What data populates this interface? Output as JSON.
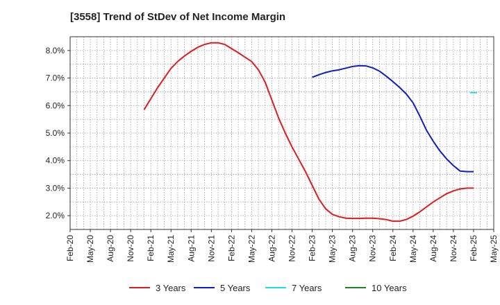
{
  "chart_data": {
    "type": "line",
    "title": "[3558]  Trend of StDev of Net Income Margin",
    "xlabel": "",
    "ylabel": "",
    "x_ticks": [
      "Feb-20",
      "May-20",
      "Aug-20",
      "Nov-20",
      "Feb-21",
      "May-21",
      "Aug-21",
      "Nov-21",
      "Feb-22",
      "May-22",
      "Aug-22",
      "Nov-22",
      "Feb-23",
      "May-23",
      "Aug-23",
      "Nov-23",
      "Feb-24",
      "May-24",
      "Aug-24",
      "Nov-24",
      "Feb-25",
      "May-25"
    ],
    "y_ticks": [
      "2.0%",
      "3.0%",
      "4.0%",
      "5.0%",
      "6.0%",
      "7.0%",
      "8.0%"
    ],
    "ylim": [
      1.5,
      8.5
    ],
    "grid": true,
    "legend_position": "bottom",
    "series": [
      {
        "name": "3 Years",
        "color": "#e31a1c",
        "x": [
          "Jan-21",
          "Feb-21",
          "Mar-21",
          "Apr-21",
          "May-21",
          "Jun-21",
          "Jul-21",
          "Aug-21",
          "Sep-21",
          "Oct-21",
          "Nov-21",
          "Dec-21",
          "Jan-22",
          "Feb-22",
          "Mar-22",
          "Apr-22",
          "May-22",
          "Jun-22",
          "Jul-22",
          "Aug-22",
          "Sep-22",
          "Oct-22",
          "Nov-22",
          "Dec-22",
          "Jan-23",
          "Feb-23",
          "Mar-23",
          "Apr-23",
          "May-23",
          "Jun-23",
          "Jul-23",
          "Aug-23",
          "Sep-23",
          "Oct-23",
          "Nov-23",
          "Dec-23",
          "Jan-24",
          "Feb-24",
          "Mar-24",
          "Apr-24",
          "May-24",
          "Jun-24",
          "Jul-24",
          "Aug-24",
          "Sep-24",
          "Oct-24",
          "Nov-24",
          "Dec-24",
          "Jan-25",
          "Feb-25"
        ],
        "values": [
          5.85,
          6.25,
          6.65,
          7.0,
          7.35,
          7.6,
          7.8,
          7.97,
          8.12,
          8.22,
          8.28,
          8.28,
          8.22,
          8.07,
          7.92,
          7.76,
          7.6,
          7.3,
          6.85,
          6.2,
          5.55,
          5.0,
          4.5,
          4.05,
          3.6,
          3.1,
          2.6,
          2.25,
          2.05,
          1.96,
          1.91,
          1.9,
          1.9,
          1.91,
          1.91,
          1.89,
          1.86,
          1.8,
          1.8,
          1.86,
          1.98,
          2.14,
          2.32,
          2.5,
          2.65,
          2.8,
          2.9,
          2.97,
          3.0,
          3.0
        ],
        "visible_from": "Jan-21",
        "visible_to": "Feb-25"
      },
      {
        "name": "5 Years",
        "color": "#0a1ec8",
        "x": [
          "Feb-23",
          "Mar-23",
          "Apr-23",
          "May-23",
          "Jun-23",
          "Jul-23",
          "Aug-23",
          "Sep-23",
          "Oct-23",
          "Nov-23",
          "Dec-23",
          "Jan-24",
          "Feb-24",
          "Mar-24",
          "Apr-24",
          "May-24",
          "Jun-24",
          "Jul-24",
          "Aug-24",
          "Sep-24",
          "Oct-24",
          "Nov-24",
          "Dec-24",
          "Jan-25",
          "Feb-25"
        ],
        "values": [
          7.03,
          7.12,
          7.2,
          7.26,
          7.3,
          7.36,
          7.42,
          7.45,
          7.44,
          7.37,
          7.25,
          7.07,
          6.87,
          6.66,
          6.42,
          6.1,
          5.62,
          5.1,
          4.7,
          4.35,
          4.06,
          3.82,
          3.62,
          3.6,
          3.6
        ]
      },
      {
        "name": "7 Years",
        "color": "#1ae0e6",
        "x": [
          "Feb-25"
        ],
        "values": [
          6.47
        ]
      },
      {
        "name": "10 Years",
        "color": "#1a8a1a",
        "x": [],
        "values": []
      }
    ]
  }
}
